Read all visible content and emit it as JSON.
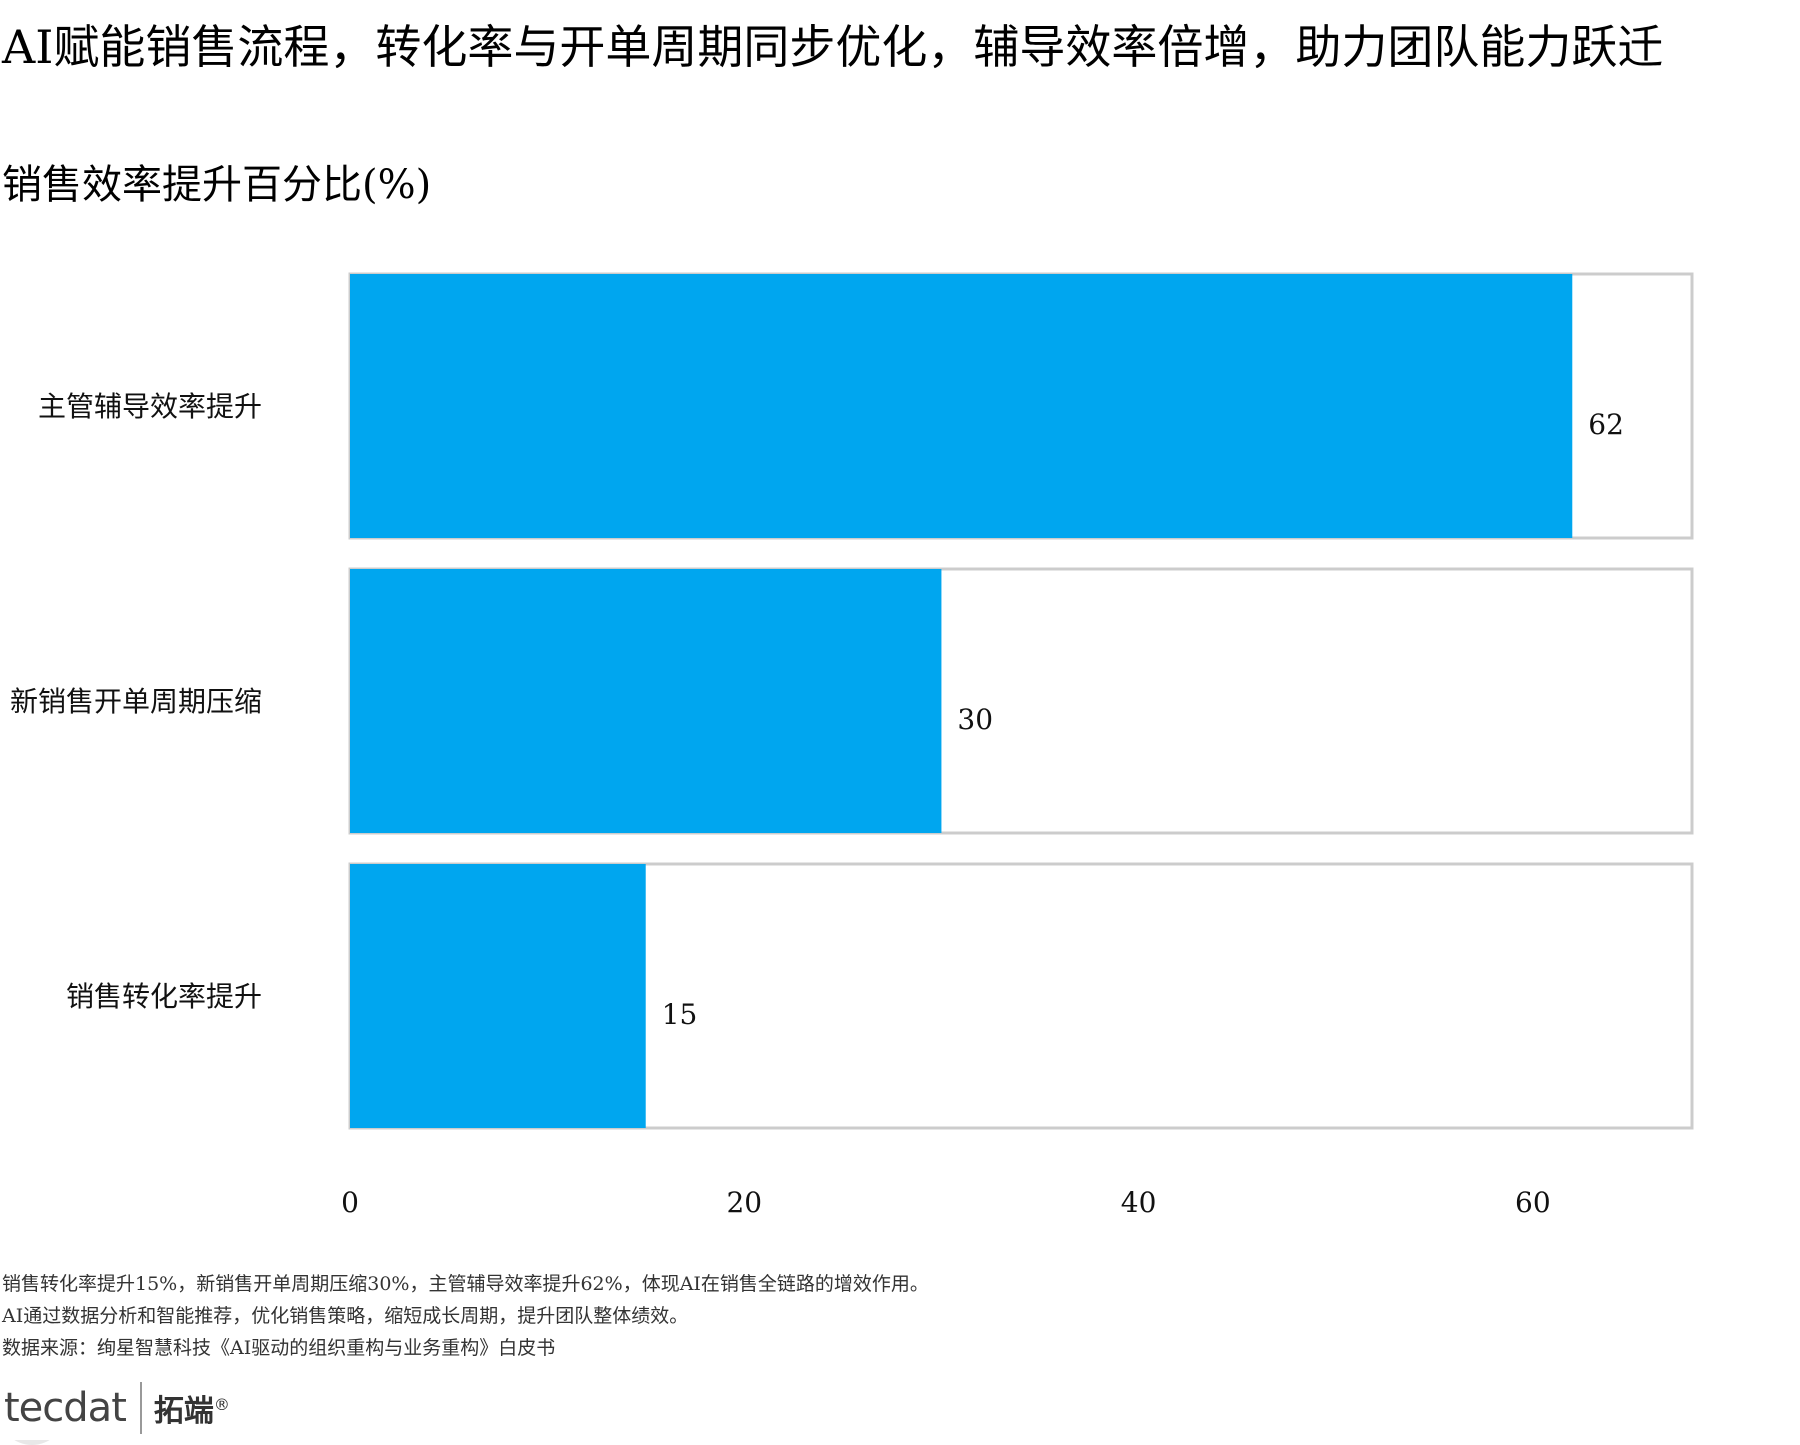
{
  "title": "AI赋能销售流程，转化率与开单周期同步优化，辅导效率倍增，助力团队能力跃迁",
  "subtitle": "销售效率提升百分比(%)",
  "notes": [
    "销售转化率提升15%，新销售开单周期压缩30%，主管辅导效率提升62%，体现AI在销售全链路的增效作用。",
    "AI通过数据分析和智能推荐，优化销售策略，缩短成长周期，提升团队整体绩效。",
    "数据来源：绚星智慧科技《AI驱动的组织重构与业务重构》白皮书"
  ],
  "logo": {
    "mark": "tecdat",
    "cn": "拓端",
    "reg": "®"
  },
  "chart_data": {
    "type": "bar",
    "orientation": "horizontal",
    "categories": [
      "主管辅导效率提升",
      "新销售开单周期压缩",
      "销售转化率提升"
    ],
    "values": [
      62,
      30,
      15
    ],
    "data_labels": [
      "62",
      "30",
      "15"
    ],
    "xlim": [
      0,
      70
    ],
    "xticks": [
      0,
      20,
      40,
      60
    ],
    "grid": false,
    "legend": "none",
    "colors": {
      "bar": "#00a6ef",
      "track_border": "#cccccc",
      "track_fill": "#ffffff"
    }
  }
}
